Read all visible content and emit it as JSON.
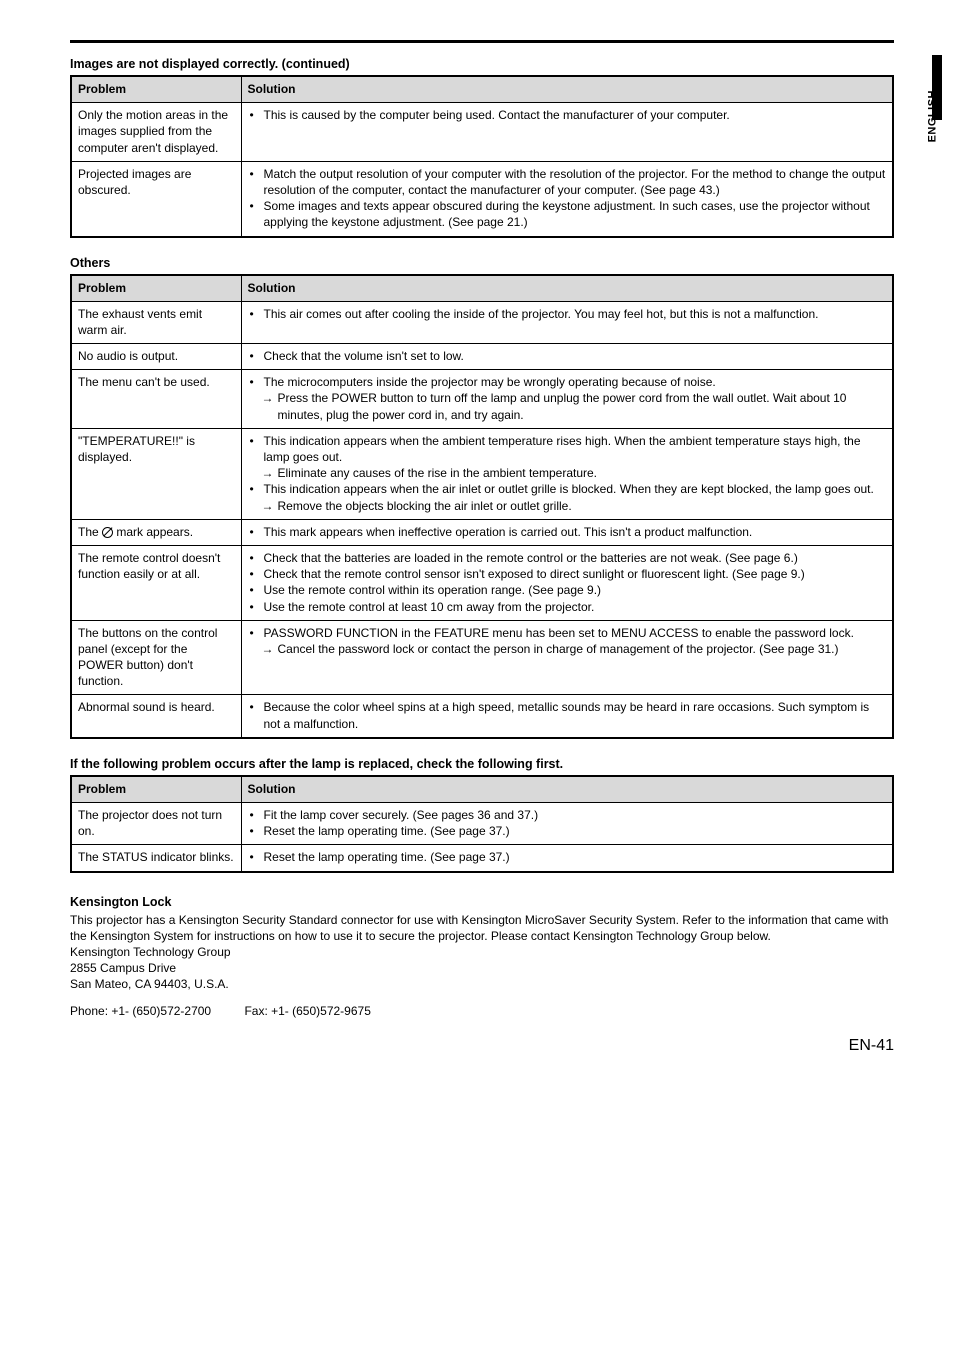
{
  "side_label": "ENGLISH",
  "section1": {
    "heading": "Images are not displayed correctly. (continued)",
    "col_problem": "Problem",
    "col_solution": "Solution",
    "rows": [
      {
        "problem": "Only the motion areas in the images supplied from the computer aren't displayed.",
        "solutions": [
          "This is caused by the computer being used. Contact the manufacturer of your computer."
        ]
      },
      {
        "problem": "Projected images are obscured.",
        "solutions": [
          "Match the output resolution of your computer with the resolution of the projector. For the method to change the output resolution of the computer, contact the manufacturer of your computer. (See page 43.)",
          "Some images and texts appear obscured during the keystone adjustment. In such cases, use the projector without applying the keystone adjustment. (See page 21.)"
        ]
      }
    ]
  },
  "section2": {
    "heading": "Others",
    "col_problem": "Problem",
    "col_solution": "Solution",
    "rows": [
      {
        "problem": "The exhaust vents emit warm air.",
        "solutions": [
          "This air comes out after cooling the inside of the projector. You may feel hot, but this is not a malfunction."
        ]
      },
      {
        "problem": "No audio is output.",
        "solutions": [
          "Check that the volume isn't set to low."
        ]
      },
      {
        "problem": "The menu can't be used.",
        "solutions": [
          "The microcomputers inside the projector may be wrongly operating because of noise."
        ],
        "arrows": [
          "Press the POWER button to turn off the lamp and unplug the power cord from the wall outlet. Wait about 10 minutes, plug the power cord in, and try again."
        ]
      },
      {
        "problem": "\"TEMPERATURE!!\" is displayed.",
        "solutions": [
          "This indication appears when the ambient temperature rises high. When the ambient temperature stays high, the lamp goes out."
        ],
        "arrows": [
          "Eliminate any causes of the rise in the ambient temperature."
        ],
        "solutions2": [
          "This indication appears when the air inlet or outlet grille is blocked. When they are kept blocked, the lamp goes out."
        ],
        "arrows2": [
          "Remove the objects blocking the air inlet or outlet grille."
        ]
      },
      {
        "problem_prefix": "The ",
        "problem_suffix": " mark appears.",
        "solutions": [
          "This mark appears when ineffective operation is carried out. This isn't a product malfunction."
        ]
      },
      {
        "problem": "The remote control doesn't function easily or at all.",
        "solutions": [
          "Check that the batteries are loaded in the remote control or the batteries are not weak. (See page 6.)",
          "Check that the remote control sensor isn't exposed to direct sunlight or fluorescent light. (See page 9.)",
          "Use the remote control within its operation range. (See page 9.)",
          "Use the remote control at least 10 cm away from the projector."
        ]
      },
      {
        "problem": "The buttons on the control panel (except for the POWER button) don't function.",
        "solutions": [
          "PASSWORD FUNCTION in the FEATURE menu has been set to MENU ACCESS to enable the password lock."
        ],
        "arrows": [
          "Cancel the password lock or contact the person in charge of management of the projector. (See page 31.)"
        ]
      },
      {
        "problem": "Abnormal sound is heard.",
        "solutions": [
          "Because the color wheel spins at a high speed, metallic sounds may be heard in rare occasions. Such symptom is not a malfunction."
        ]
      }
    ]
  },
  "section3": {
    "heading": "If the following problem occurs after the lamp is replaced, check the following first.",
    "col_problem": "Problem",
    "col_solution": "Solution",
    "rows": [
      {
        "problem": "The projector does not turn on.",
        "solutions": [
          "Fit the lamp cover securely. (See pages 36 and 37.)",
          "Reset the lamp operating time. (See page 37.)"
        ]
      },
      {
        "problem": "The STATUS indicator blinks.",
        "solutions": [
          "Reset the lamp operating time. (See page 37.)"
        ]
      }
    ]
  },
  "kensington": {
    "heading": "Kensington Lock",
    "body1": "This projector has a Kensington Security Standard connector for use with Kensington MicroSaver Security System. Refer to the information that came with the Kensington System for instructions on how to use it to secure the projector. Please contact Kensington Technology Group below.",
    "addr1": "Kensington Technology Group",
    "addr2": "2855 Campus Drive",
    "addr3": "San Mateo, CA 94403, U.S.A.",
    "phone": "Phone: +1- (650)572-2700",
    "fax": "Fax: +1- (650)572-9675"
  },
  "page_number": "EN-41"
}
